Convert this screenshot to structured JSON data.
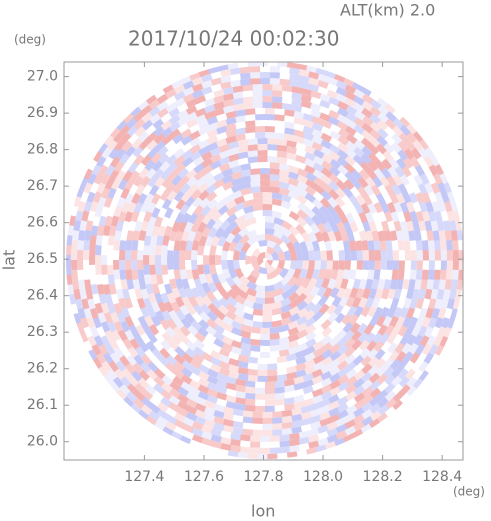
{
  "chart_data": {
    "type": "radar_ppi",
    "title": "2017/10/24 00:02:30",
    "subtitle": "ALT(km) 2.0",
    "x_label": "lon",
    "y_label": "lat",
    "x_unit": "(deg)",
    "y_unit": "(deg)",
    "xlim": [
      127.13,
      128.47
    ],
    "ylim": [
      25.95,
      27.04
    ],
    "xticks": [
      {
        "value": 127.4,
        "label": "127.4"
      },
      {
        "value": 127.6,
        "label": "127.6"
      },
      {
        "value": 127.8,
        "label": "127.8"
      },
      {
        "value": 128.0,
        "label": "128.0"
      },
      {
        "value": 128.2,
        "label": "128.2"
      },
      {
        "value": 128.4,
        "label": "128.4"
      }
    ],
    "yticks": [
      {
        "value": 26.0,
        "label": "26.0"
      },
      {
        "value": 26.1,
        "label": "26.1"
      },
      {
        "value": 26.2,
        "label": "26.2"
      },
      {
        "value": 26.3,
        "label": "26.3"
      },
      {
        "value": 26.4,
        "label": "26.4"
      },
      {
        "value": 26.5,
        "label": "26.5"
      },
      {
        "value": 26.6,
        "label": "26.6"
      },
      {
        "value": 26.7,
        "label": "26.7"
      },
      {
        "value": 26.8,
        "label": "26.8"
      },
      {
        "value": 26.9,
        "label": "26.9"
      },
      {
        "value": 27.0,
        "label": "27.0"
      }
    ]
  }
}
